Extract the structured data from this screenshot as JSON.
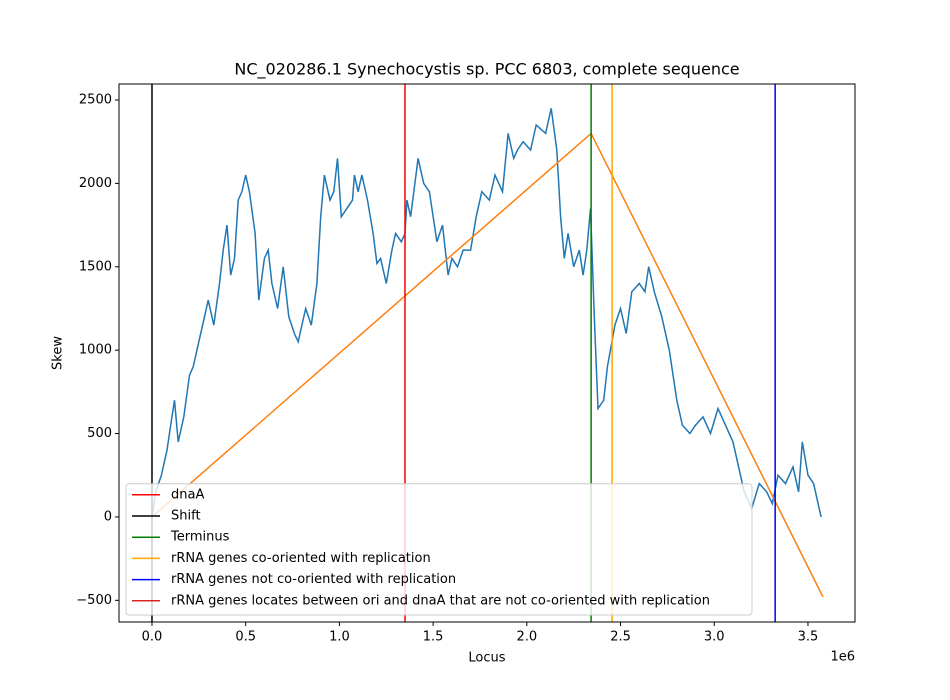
{
  "chart_data": {
    "type": "line",
    "title": "NC_020286.1 Synechocystis sp. PCC 6803, complete sequence",
    "x_label": "Locus",
    "y_label": "Skew",
    "x_offset_label": "1e6",
    "xlim": [
      -176000,
      3751000
    ],
    "ylim": [
      -630,
      2596
    ],
    "xticks": [
      {
        "value": 0,
        "label": "0.0"
      },
      {
        "value": 500000,
        "label": "0.5"
      },
      {
        "value": 1000000,
        "label": "1.0"
      },
      {
        "value": 1500000,
        "label": "1.5"
      },
      {
        "value": 2000000,
        "label": "2.0"
      },
      {
        "value": 2500000,
        "label": "2.5"
      },
      {
        "value": 3000000,
        "label": "3.0"
      },
      {
        "value": 3500000,
        "label": "3.5"
      }
    ],
    "yticks": [
      {
        "value": -500,
        "label": "−500"
      },
      0,
      500,
      1000,
      1500,
      2000,
      2500
    ],
    "legend_position": "lower left",
    "series": [
      {
        "color": "#1f77b4",
        "x": [
          0,
          20000,
          50000,
          80000,
          100000,
          120000,
          140000,
          170000,
          200000,
          220000,
          250000,
          280000,
          300000,
          330000,
          360000,
          380000,
          400000,
          420000,
          440000,
          460000,
          480000,
          500000,
          520000,
          550000,
          570000,
          600000,
          620000,
          640000,
          670000,
          700000,
          730000,
          760000,
          780000,
          800000,
          820000,
          850000,
          880000,
          900000,
          920000,
          950000,
          970000,
          990000,
          1010000,
          1040000,
          1070000,
          1080000,
          1100000,
          1120000,
          1150000,
          1180000,
          1200000,
          1220000,
          1250000,
          1280000,
          1300000,
          1330000,
          1350000,
          1360000,
          1380000,
          1420000,
          1450000,
          1480000,
          1520000,
          1550000,
          1580000,
          1600000,
          1630000,
          1660000,
          1700000,
          1730000,
          1760000,
          1800000,
          1830000,
          1870000,
          1900000,
          1930000,
          1950000,
          1980000,
          2020000,
          2050000,
          2100000,
          2130000,
          2160000,
          2180000,
          2200000,
          2220000,
          2250000,
          2280000,
          2300000,
          2320000,
          2340000,
          2360000,
          2380000,
          2410000,
          2430000,
          2470000,
          2500000,
          2530000,
          2560000,
          2600000,
          2630000,
          2650000,
          2680000,
          2720000,
          2760000,
          2800000,
          2830000,
          2870000,
          2900000,
          2940000,
          2980000,
          3020000,
          3060000,
          3100000,
          3130000,
          3160000,
          3200000,
          3240000,
          3280000,
          3310000,
          3340000,
          3380000,
          3420000,
          3450000,
          3470000,
          3500000,
          3530000,
          3570000
        ],
        "values": [
          0,
          150,
          250,
          400,
          550,
          700,
          450,
          600,
          850,
          900,
          1050,
          1200,
          1300,
          1150,
          1400,
          1600,
          1750,
          1450,
          1550,
          1900,
          1950,
          2050,
          1950,
          1700,
          1300,
          1550,
          1600,
          1400,
          1250,
          1500,
          1200,
          1100,
          1050,
          1150,
          1250,
          1150,
          1400,
          1800,
          2050,
          1900,
          1950,
          2150,
          1800,
          1850,
          1900,
          2050,
          1950,
          2050,
          1900,
          1700,
          1520,
          1550,
          1400,
          1600,
          1700,
          1650,
          1700,
          1900,
          1800,
          2150,
          2000,
          1950,
          1650,
          1750,
          1450,
          1550,
          1500,
          1600,
          1600,
          1800,
          1950,
          1900,
          2050,
          1950,
          2300,
          2150,
          2200,
          2250,
          2200,
          2350,
          2300,
          2450,
          2200,
          1800,
          1550,
          1700,
          1500,
          1600,
          1450,
          1600,
          1850,
          1200,
          650,
          700,
          900,
          1150,
          1250,
          1100,
          1350,
          1400,
          1350,
          1500,
          1350,
          1200,
          1000,
          700,
          550,
          500,
          550,
          600,
          500,
          650,
          550,
          450,
          300,
          150,
          50,
          200,
          150,
          80,
          250,
          200,
          300,
          150,
          450,
          250,
          200,
          0
        ]
      },
      {
        "color": "#ff7f0e",
        "x": [
          0,
          2343000,
          3580000
        ],
        "values": [
          0,
          2300,
          -480
        ]
      }
    ],
    "vlines": [
      {
        "name": "dnaA",
        "color": "#ff0000",
        "x": [
          1350000
        ]
      },
      {
        "name": "Shift",
        "color": "#000000",
        "x": [
          0
        ]
      },
      {
        "name": "Terminus",
        "color": "#008000",
        "x": [
          2343000
        ]
      },
      {
        "name": "rRNA genes co-oriented with replication",
        "color": "#ffa500",
        "x": [
          2455000
        ]
      },
      {
        "name": "rRNA genes not co-oriented with replication",
        "color": "#0000ff",
        "x": [
          3325000
        ]
      },
      {
        "name": "rRNA genes locates between ori and dnaA that are not co-oriented with replication",
        "color": "#d62728",
        "x": []
      }
    ]
  }
}
